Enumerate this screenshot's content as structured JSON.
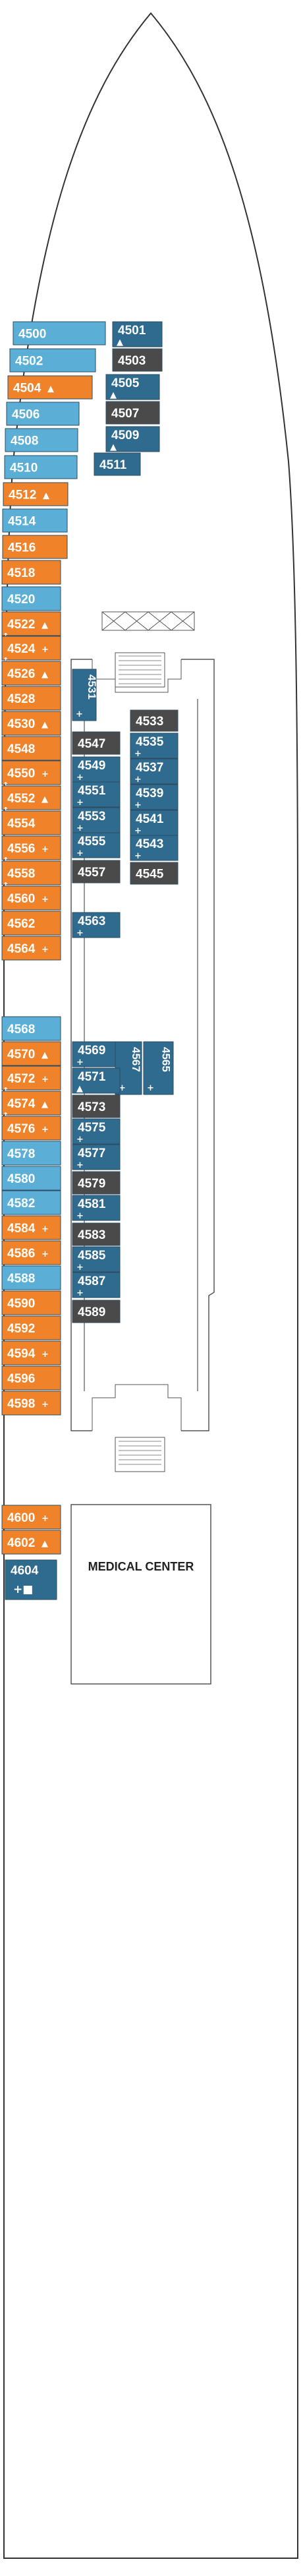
{
  "deck": {
    "colors": {
      "blue": "#5bafd6",
      "orange": "#f0832a",
      "teal": "#2f6a8f",
      "dark": "#4a4a4a",
      "outline": "#333333"
    },
    "medical_center_label": "MEDICAL CENTER",
    "cabins": [
      {
        "id": "4500",
        "sym": "",
        "color": "blue"
      },
      {
        "id": "4502",
        "sym": "",
        "color": "blue"
      },
      {
        "id": "4504",
        "sym": "▲",
        "color": "orange"
      },
      {
        "id": "4506",
        "sym": "",
        "color": "blue"
      },
      {
        "id": "4508",
        "sym": "",
        "color": "blue"
      },
      {
        "id": "4510",
        "sym": "",
        "color": "blue"
      },
      {
        "id": "4512",
        "sym": "▲",
        "color": "orange"
      },
      {
        "id": "4514",
        "sym": "",
        "color": "blue"
      },
      {
        "id": "4516",
        "sym": "",
        "color": "orange"
      },
      {
        "id": "4518",
        "sym": "",
        "color": "orange"
      },
      {
        "id": "4520",
        "sym": "",
        "color": "blue"
      },
      {
        "id": "4522",
        "sym": "▲",
        "color": "orange",
        "conn": true
      },
      {
        "id": "4524",
        "sym": "+",
        "color": "orange",
        "conn": true
      },
      {
        "id": "4526",
        "sym": "▲",
        "color": "orange"
      },
      {
        "id": "4528",
        "sym": "",
        "color": "orange"
      },
      {
        "id": "4530",
        "sym": "▲",
        "color": "orange"
      },
      {
        "id": "4548",
        "sym": "",
        "color": "orange"
      },
      {
        "id": "4550",
        "sym": "+",
        "color": "orange",
        "conn": true
      },
      {
        "id": "4552",
        "sym": "▲",
        "color": "orange",
        "conn": true
      },
      {
        "id": "4554",
        "sym": "",
        "color": "orange"
      },
      {
        "id": "4556",
        "sym": "+",
        "color": "orange",
        "conn": true
      },
      {
        "id": "4558",
        "sym": "",
        "color": "orange",
        "conn": true
      },
      {
        "id": "4560",
        "sym": "+",
        "color": "orange"
      },
      {
        "id": "4562",
        "sym": "",
        "color": "orange"
      },
      {
        "id": "4564",
        "sym": "+",
        "color": "orange"
      },
      {
        "id": "4568",
        "sym": "",
        "color": "blue"
      },
      {
        "id": "4570",
        "sym": "▲",
        "color": "orange"
      },
      {
        "id": "4572",
        "sym": "+",
        "color": "orange",
        "conn": true
      },
      {
        "id": "4574",
        "sym": "▲",
        "color": "orange",
        "conn": true
      },
      {
        "id": "4576",
        "sym": "+",
        "color": "orange"
      },
      {
        "id": "4578",
        "sym": "",
        "color": "blue"
      },
      {
        "id": "4580",
        "sym": "",
        "color": "blue"
      },
      {
        "id": "4582",
        "sym": "",
        "color": "blue"
      },
      {
        "id": "4584",
        "sym": "+",
        "color": "orange"
      },
      {
        "id": "4586",
        "sym": "+",
        "color": "orange"
      },
      {
        "id": "4588",
        "sym": "",
        "color": "blue"
      },
      {
        "id": "4590",
        "sym": "",
        "color": "orange"
      },
      {
        "id": "4592",
        "sym": "",
        "color": "orange"
      },
      {
        "id": "4594",
        "sym": "+",
        "color": "orange"
      },
      {
        "id": "4596",
        "sym": "",
        "color": "orange"
      },
      {
        "id": "4598",
        "sym": "+",
        "color": "orange"
      },
      {
        "id": "4600",
        "sym": "+",
        "color": "orange"
      },
      {
        "id": "4602",
        "sym": "▲",
        "color": "orange"
      },
      {
        "id": "4604",
        "sym": "+■",
        "color": "teal"
      },
      {
        "id": "4501",
        "sym": "▲",
        "color": "teal"
      },
      {
        "id": "4503",
        "sym": "",
        "color": "dark"
      },
      {
        "id": "4505",
        "sym": "▲",
        "color": "teal"
      },
      {
        "id": "4507",
        "sym": "",
        "color": "dark"
      },
      {
        "id": "4509",
        "sym": "▲",
        "color": "teal"
      },
      {
        "id": "4511",
        "sym": "",
        "color": "teal"
      },
      {
        "id": "4531",
        "sym": "+",
        "color": "teal",
        "vertical": true
      },
      {
        "id": "4533",
        "sym": "",
        "color": "dark"
      },
      {
        "id": "4535",
        "sym": "+",
        "color": "teal"
      },
      {
        "id": "4537",
        "sym": "+",
        "color": "teal"
      },
      {
        "id": "4539",
        "sym": "+",
        "color": "teal"
      },
      {
        "id": "4541",
        "sym": "+",
        "color": "teal"
      },
      {
        "id": "4543",
        "sym": "+",
        "color": "teal"
      },
      {
        "id": "4545",
        "sym": "",
        "color": "dark"
      },
      {
        "id": "4547",
        "sym": "",
        "color": "dark"
      },
      {
        "id": "4549",
        "sym": "+",
        "color": "teal"
      },
      {
        "id": "4551",
        "sym": "+",
        "color": "teal"
      },
      {
        "id": "4553",
        "sym": "+",
        "color": "teal"
      },
      {
        "id": "4555",
        "sym": "+",
        "color": "teal"
      },
      {
        "id": "4557",
        "sym": "",
        "color": "dark"
      },
      {
        "id": "4563",
        "sym": "+",
        "color": "teal"
      },
      {
        "id": "4569",
        "sym": "+",
        "color": "teal"
      },
      {
        "id": "4567",
        "sym": "+",
        "color": "teal",
        "vertical": true
      },
      {
        "id": "4565",
        "sym": "+",
        "color": "teal",
        "vertical": true
      },
      {
        "id": "4571",
        "sym": "▲",
        "color": "teal"
      },
      {
        "id": "4573",
        "sym": "",
        "color": "dark"
      },
      {
        "id": "4575",
        "sym": "+",
        "color": "teal"
      },
      {
        "id": "4577",
        "sym": "+",
        "color": "teal"
      },
      {
        "id": "4579",
        "sym": "",
        "color": "dark"
      },
      {
        "id": "4581",
        "sym": "+",
        "color": "teal"
      },
      {
        "id": "4583",
        "sym": "",
        "color": "dark"
      },
      {
        "id": "4585",
        "sym": "+",
        "color": "teal"
      },
      {
        "id": "4587",
        "sym": "+",
        "color": "teal"
      },
      {
        "id": "4589",
        "sym": "",
        "color": "dark"
      }
    ]
  }
}
